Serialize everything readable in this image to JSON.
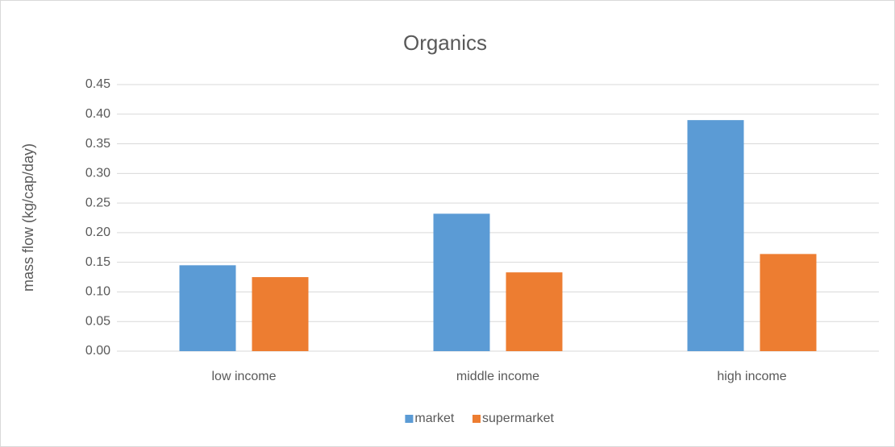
{
  "chart_data": {
    "type": "bar",
    "title": "Organics",
    "y_label": "mass flow (kg/cap/day)",
    "categories": [
      "low income",
      "middle income",
      "high income"
    ],
    "series": [
      {
        "name": "market",
        "color": "#5b9bd5",
        "values": [
          0.145,
          0.232,
          0.39
        ]
      },
      {
        "name": "supermarket",
        "color": "#ed7d31",
        "values": [
          0.125,
          0.133,
          0.164
        ]
      }
    ],
    "ylim": [
      0,
      0.45
    ],
    "yticks": [
      {
        "value": 0,
        "label": "0.00"
      },
      {
        "value": 0.05,
        "label": "0.05"
      },
      {
        "value": 0.1,
        "label": "0.10"
      },
      {
        "value": 0.15,
        "label": "0.15"
      },
      {
        "value": 0.2,
        "label": "0.20"
      },
      {
        "value": 0.25,
        "label": "0.25"
      },
      {
        "value": 0.3,
        "label": "0.30"
      },
      {
        "value": 0.35,
        "label": "0.35"
      },
      {
        "value": 0.4,
        "label": "0.40"
      },
      {
        "value": 0.45,
        "label": "0.45"
      }
    ],
    "grid": true,
    "legend": "bottom"
  }
}
